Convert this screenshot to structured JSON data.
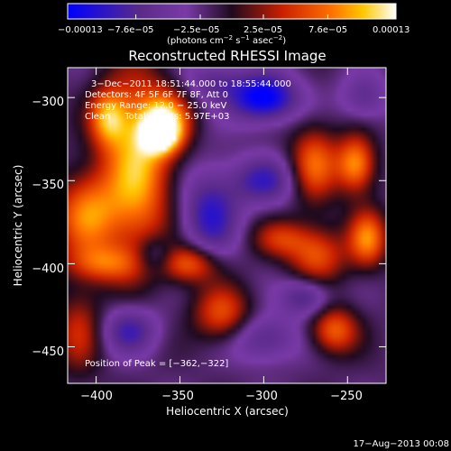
{
  "chart_data": {
    "type": "heatmap",
    "title": "Reconstructed RHESSI Image",
    "xlabel": "Heliocentric X (arcsec)",
    "ylabel": "Heliocentric Y (arcsec)",
    "xlim": [
      -417,
      -227
    ],
    "ylim": [
      -472,
      -282
    ],
    "x_ticks": [
      -400,
      -350,
      -300,
      -250
    ],
    "x_tick_labels": [
      "−400",
      "−350",
      "−300",
      "−250"
    ],
    "y_ticks": [
      -300,
      -350,
      -400,
      -450
    ],
    "y_tick_labels": [
      "−300",
      "−350",
      "−400",
      "−450"
    ],
    "colorbar": {
      "range": [
        -0.00013,
        0.00013
      ],
      "ticks": [
        -0.00013,
        -7.6e-05,
        -2.5e-05,
        2.5e-05,
        7.6e-05,
        0.00013
      ],
      "tick_labels": [
        "−0.00013",
        "−7.6e−05",
        "−2.5e−05",
        "2.5e−05",
        "7.6e−05",
        "0.00013"
      ],
      "unit_prefix": "(photons cm",
      "unit_exp1": "−2",
      "unit_mid": " s",
      "unit_exp2": "−1",
      "unit_mid2": " asec",
      "unit_exp3": "−2",
      "unit_suffix": ")"
    },
    "colormap": [
      "#0000ff",
      "#5a2a8a",
      "#7a3aa8",
      "#1e0a1e",
      "#c81e00",
      "#ff6e00",
      "#ffc800",
      "#ffffff"
    ],
    "sources": [
      {
        "x": -375,
        "y": -340,
        "sx": 14,
        "sy": 38,
        "amp": 0.00012
      },
      {
        "x": -358,
        "y": -315,
        "sx": 10,
        "sy": 12,
        "amp": 0.00011
      },
      {
        "x": -362,
        "y": -322,
        "sx": 7,
        "sy": 7,
        "amp": 0.00012
      },
      {
        "x": -405,
        "y": -370,
        "sx": 14,
        "sy": 18,
        "amp": 0.0001
      },
      {
        "x": -393,
        "y": -312,
        "sx": 8,
        "sy": 12,
        "amp": 0.0001
      },
      {
        "x": -395,
        "y": -400,
        "sx": 16,
        "sy": 8,
        "amp": 7e-05
      },
      {
        "x": -345,
        "y": -400,
        "sx": 12,
        "sy": 8,
        "amp": 9e-05
      },
      {
        "x": -325,
        "y": -430,
        "sx": 12,
        "sy": 12,
        "amp": 8e-05
      },
      {
        "x": -270,
        "y": -340,
        "sx": 10,
        "sy": 16,
        "amp": 9e-05
      },
      {
        "x": -245,
        "y": -340,
        "sx": 8,
        "sy": 12,
        "amp": 0.00011
      },
      {
        "x": -238,
        "y": -385,
        "sx": 8,
        "sy": 12,
        "amp": 0.0001
      },
      {
        "x": -268,
        "y": -395,
        "sx": 12,
        "sy": 12,
        "amp": 8e-05
      },
      {
        "x": -258,
        "y": -440,
        "sx": 10,
        "sy": 10,
        "amp": 9e-05
      },
      {
        "x": -290,
        "y": -385,
        "sx": 12,
        "sy": 8,
        "amp": 6e-05
      },
      {
        "x": -410,
        "y": -440,
        "sx": 10,
        "sy": 18,
        "amp": 6e-05
      },
      {
        "x": -330,
        "y": -290,
        "sx": 12,
        "sy": 8,
        "amp": -5e-05
      },
      {
        "x": -300,
        "y": -300,
        "sx": 14,
        "sy": 10,
        "amp": -0.00012
      },
      {
        "x": -332,
        "y": -370,
        "sx": 12,
        "sy": 18,
        "amp": -8e-05
      },
      {
        "x": -300,
        "y": -350,
        "sx": 14,
        "sy": 10,
        "amp": -7e-05
      },
      {
        "x": -275,
        "y": -420,
        "sx": 10,
        "sy": 8,
        "amp": -7e-05
      },
      {
        "x": -380,
        "y": -440,
        "sx": 12,
        "sy": 10,
        "amp": -7e-05
      },
      {
        "x": -300,
        "y": -445,
        "sx": 14,
        "sy": 10,
        "amp": -6e-05
      },
      {
        "x": -240,
        "y": -300,
        "sx": 10,
        "sy": 10,
        "amp": -5e-05
      },
      {
        "x": -365,
        "y": -395,
        "sx": 8,
        "sy": 8,
        "amp": -5e-05
      }
    ],
    "peak": {
      "x": -362,
      "y": -322
    }
  },
  "annotations": {
    "time_range": "3−Dec−2011 18:51:44.000 to 18:55:44.000",
    "detectors": "Detectors: 4F 5F 6F 7F 8F, Att 0",
    "energy": "Energy Range: 12.0 − 25.0 keV",
    "clean": "Clean     Total counts: 5.97E+03",
    "peak_label": "Position of Peak = [−362,−322]"
  },
  "timestamp": "17−Aug−2013 00:08"
}
